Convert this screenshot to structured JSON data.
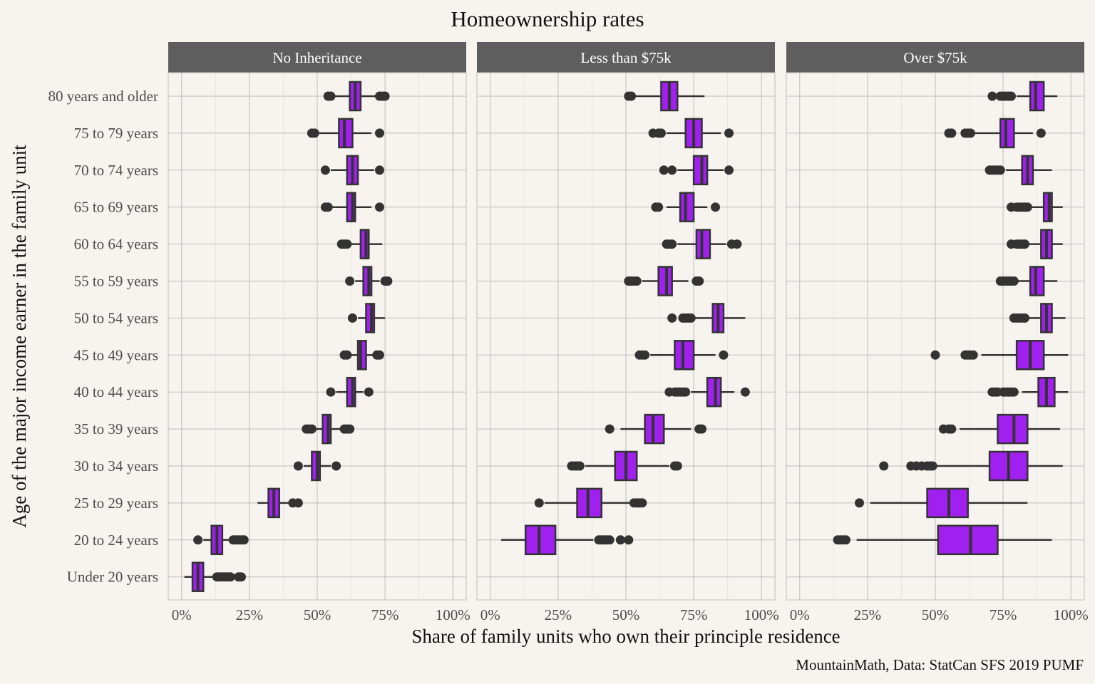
{
  "chart_data": {
    "type": "boxplot",
    "title": "Homeownership rates",
    "xlabel": "Share of family units who own their principle residence",
    "ylabel": "Age of the major income earner in the family unit",
    "caption": "MountainMath, Data: StatCan SFS 2019 PUMF",
    "xlim": [
      0,
      1
    ],
    "x_ticks": [
      0,
      0.25,
      0.5,
      0.75,
      1
    ],
    "x_tick_labels": [
      "0%",
      "25%",
      "50%",
      "75%",
      "100%"
    ],
    "box_color": "#a020f0",
    "categories": [
      "80 years and older",
      "75 to 79 years",
      "70 to 74 years",
      "65 to 69 years",
      "60 to 64 years",
      "55 to 59 years",
      "50 to 54 years",
      "45 to 49 years",
      "40 to 44 years",
      "35 to 39 years",
      "30 to 34 years",
      "25 to 29 years",
      "20 to 24 years",
      "Under 20 years"
    ],
    "panels": [
      {
        "name": "No Inheritance",
        "boxes": [
          {
            "whisker_low": 0.56,
            "q1": 0.62,
            "median": 0.64,
            "q3": 0.66,
            "whisker_high": 0.72,
            "outliers": [
              0.54,
              0.55,
              0.73,
              0.74,
              0.75
            ]
          },
          {
            "whisker_low": 0.5,
            "q1": 0.58,
            "median": 0.6,
            "q3": 0.63,
            "whisker_high": 0.7,
            "outliers": [
              0.48,
              0.49,
              0.73
            ]
          },
          {
            "whisker_low": 0.55,
            "q1": 0.61,
            "median": 0.63,
            "q3": 0.65,
            "whisker_high": 0.71,
            "outliers": [
              0.53,
              0.73
            ]
          },
          {
            "whisker_low": 0.55,
            "q1": 0.61,
            "median": 0.63,
            "q3": 0.64,
            "whisker_high": 0.7,
            "outliers": [
              0.53,
              0.54,
              0.73
            ]
          },
          {
            "whisker_low": 0.62,
            "q1": 0.66,
            "median": 0.68,
            "q3": 0.69,
            "whisker_high": 0.74,
            "outliers": [
              0.59,
              0.6,
              0.61
            ]
          },
          {
            "whisker_low": 0.64,
            "q1": 0.67,
            "median": 0.69,
            "q3": 0.7,
            "whisker_high": 0.73,
            "outliers": [
              0.62,
              0.75,
              0.76
            ]
          },
          {
            "whisker_low": 0.65,
            "q1": 0.68,
            "median": 0.7,
            "q3": 0.71,
            "whisker_high": 0.75,
            "outliers": [
              0.63
            ]
          },
          {
            "whisker_low": 0.62,
            "q1": 0.65,
            "median": 0.66,
            "q3": 0.68,
            "whisker_high": 0.71,
            "outliers": [
              0.6,
              0.61,
              0.72,
              0.73
            ]
          },
          {
            "whisker_low": 0.57,
            "q1": 0.61,
            "median": 0.63,
            "q3": 0.64,
            "whisker_high": 0.67,
            "outliers": [
              0.55,
              0.69
            ]
          },
          {
            "whisker_low": 0.49,
            "q1": 0.52,
            "median": 0.54,
            "q3": 0.55,
            "whisker_high": 0.59,
            "outliers": [
              0.46,
              0.47,
              0.48,
              0.6,
              0.61,
              0.62
            ]
          },
          {
            "whisker_low": 0.45,
            "q1": 0.48,
            "median": 0.5,
            "q3": 0.51,
            "whisker_high": 0.55,
            "outliers": [
              0.43,
              0.57
            ]
          },
          {
            "whisker_low": 0.28,
            "q1": 0.32,
            "median": 0.34,
            "q3": 0.36,
            "whisker_high": 0.4,
            "outliers": [
              0.41,
              0.43
            ]
          },
          {
            "whisker_low": 0.08,
            "q1": 0.11,
            "median": 0.13,
            "q3": 0.15,
            "whisker_high": 0.18,
            "outliers": [
              0.06,
              0.19,
              0.2,
              0.21,
              0.22,
              0.23
            ]
          },
          {
            "whisker_low": 0.01,
            "q1": 0.04,
            "median": 0.06,
            "q3": 0.08,
            "whisker_high": 0.12,
            "outliers": [
              0.13,
              0.14,
              0.15,
              0.16,
              0.17,
              0.18,
              0.21,
              0.22
            ]
          }
        ]
      },
      {
        "name": "Less than $75k",
        "boxes": [
          {
            "whisker_low": 0.53,
            "q1": 0.63,
            "median": 0.66,
            "q3": 0.69,
            "whisker_high": 0.79,
            "outliers": [
              0.51,
              0.52
            ]
          },
          {
            "whisker_low": 0.65,
            "q1": 0.72,
            "median": 0.75,
            "q3": 0.78,
            "whisker_high": 0.85,
            "outliers": [
              0.6,
              0.62,
              0.63,
              0.88
            ]
          },
          {
            "whisker_low": 0.69,
            "q1": 0.75,
            "median": 0.78,
            "q3": 0.8,
            "whisker_high": 0.86,
            "outliers": [
              0.64,
              0.67,
              0.88
            ]
          },
          {
            "whisker_low": 0.65,
            "q1": 0.7,
            "median": 0.72,
            "q3": 0.75,
            "whisker_high": 0.8,
            "outliers": [
              0.61,
              0.62,
              0.83
            ]
          },
          {
            "whisker_low": 0.69,
            "q1": 0.76,
            "median": 0.78,
            "q3": 0.81,
            "whisker_high": 0.87,
            "outliers": [
              0.65,
              0.66,
              0.67,
              0.89,
              0.91
            ]
          },
          {
            "whisker_low": 0.56,
            "q1": 0.62,
            "median": 0.65,
            "q3": 0.67,
            "whisker_high": 0.73,
            "outliers": [
              0.51,
              0.52,
              0.53,
              0.54,
              0.76,
              0.77
            ]
          },
          {
            "whisker_low": 0.75,
            "q1": 0.82,
            "median": 0.84,
            "q3": 0.86,
            "whisker_high": 0.94,
            "outliers": [
              0.67,
              0.71,
              0.72,
              0.73,
              0.74
            ]
          },
          {
            "whisker_low": 0.59,
            "q1": 0.68,
            "median": 0.71,
            "q3": 0.75,
            "whisker_high": 0.83,
            "outliers": [
              0.55,
              0.56,
              0.57,
              0.86
            ]
          },
          {
            "whisker_low": 0.74,
            "q1": 0.8,
            "median": 0.83,
            "q3": 0.85,
            "whisker_high": 0.9,
            "outliers": [
              0.66,
              0.68,
              0.69,
              0.7,
              0.71,
              0.72,
              0.94
            ]
          },
          {
            "whisker_low": 0.48,
            "q1": 0.57,
            "median": 0.6,
            "q3": 0.64,
            "whisker_high": 0.74,
            "outliers": [
              0.44,
              0.77,
              0.78
            ]
          },
          {
            "whisker_low": 0.35,
            "q1": 0.46,
            "median": 0.5,
            "q3": 0.54,
            "whisker_high": 0.66,
            "outliers": [
              0.3,
              0.31,
              0.32,
              0.33,
              0.68,
              0.69
            ]
          },
          {
            "whisker_low": 0.2,
            "q1": 0.32,
            "median": 0.36,
            "q3": 0.41,
            "whisker_high": 0.52,
            "outliers": [
              0.18,
              0.53,
              0.54,
              0.55,
              0.56
            ]
          },
          {
            "whisker_low": 0.04,
            "q1": 0.13,
            "median": 0.18,
            "q3": 0.24,
            "whisker_high": 0.38,
            "outliers": [
              0.4,
              0.41,
              0.42,
              0.43,
              0.44,
              0.48,
              0.51
            ]
          },
          null
        ]
      },
      {
        "name": "Over $75k",
        "boxes": [
          {
            "whisker_low": 0.8,
            "q1": 0.85,
            "median": 0.87,
            "q3": 0.9,
            "whisker_high": 0.95,
            "outliers": [
              0.71,
              0.74,
              0.75,
              0.76,
              0.77,
              0.78
            ]
          },
          {
            "whisker_low": 0.64,
            "q1": 0.74,
            "median": 0.76,
            "q3": 0.79,
            "whisker_high": 0.86,
            "outliers": [
              0.55,
              0.56,
              0.61,
              0.62,
              0.63,
              0.89
            ]
          },
          {
            "whisker_low": 0.76,
            "q1": 0.82,
            "median": 0.84,
            "q3": 0.86,
            "whisker_high": 0.93,
            "outliers": [
              0.7,
              0.71,
              0.72,
              0.73,
              0.74
            ]
          },
          {
            "whisker_low": 0.85,
            "q1": 0.9,
            "median": 0.92,
            "q3": 0.93,
            "whisker_high": 0.97,
            "outliers": [
              0.78,
              0.8,
              0.81,
              0.82,
              0.83,
              0.84
            ]
          },
          {
            "whisker_low": 0.84,
            "q1": 0.89,
            "median": 0.91,
            "q3": 0.93,
            "whisker_high": 0.97,
            "outliers": [
              0.78,
              0.8,
              0.81,
              0.82,
              0.83
            ]
          },
          {
            "whisker_low": 0.8,
            "q1": 0.85,
            "median": 0.87,
            "q3": 0.9,
            "whisker_high": 0.95,
            "outliers": [
              0.74,
              0.75,
              0.76,
              0.77,
              0.78,
              0.79
            ]
          },
          {
            "whisker_low": 0.84,
            "q1": 0.89,
            "median": 0.91,
            "q3": 0.93,
            "whisker_high": 0.98,
            "outliers": [
              0.79,
              0.8,
              0.81,
              0.82,
              0.83
            ]
          },
          {
            "whisker_low": 0.67,
            "q1": 0.8,
            "median": 0.85,
            "q3": 0.9,
            "whisker_high": 0.99,
            "outliers": [
              0.5,
              0.61,
              0.62,
              0.63,
              0.64
            ]
          },
          {
            "whisker_low": 0.82,
            "q1": 0.88,
            "median": 0.91,
            "q3": 0.94,
            "whisker_high": 0.99,
            "outliers": [
              0.71,
              0.72,
              0.73,
              0.75,
              0.76,
              0.77,
              0.78,
              0.79
            ]
          },
          {
            "whisker_low": 0.59,
            "q1": 0.73,
            "median": 0.79,
            "q3": 0.84,
            "whisker_high": 0.96,
            "outliers": [
              0.53,
              0.55,
              0.56
            ]
          },
          {
            "whisker_low": 0.5,
            "q1": 0.7,
            "median": 0.77,
            "q3": 0.84,
            "whisker_high": 0.97,
            "outliers": [
              0.31,
              0.41,
              0.43,
              0.45,
              0.47,
              0.48,
              0.49
            ]
          },
          {
            "whisker_low": 0.26,
            "q1": 0.47,
            "median": 0.55,
            "q3": 0.62,
            "whisker_high": 0.84,
            "outliers": [
              0.22
            ]
          },
          {
            "whisker_low": 0.21,
            "q1": 0.51,
            "median": 0.63,
            "q3": 0.73,
            "whisker_high": 0.93,
            "outliers": [
              0.14,
              0.15,
              0.16,
              0.17
            ]
          },
          null
        ]
      }
    ]
  }
}
